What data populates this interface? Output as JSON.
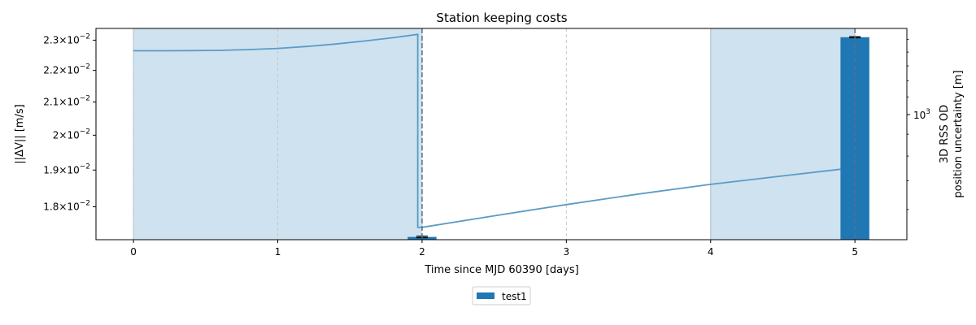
{
  "chart_data": {
    "type": "bar",
    "title": "Station keeping costs",
    "xlabel": "Time since MJD 60390 [days]",
    "ylabel": "||ΔV|| [m/s]",
    "y2label_line1": "3D RSS OD",
    "y2label_line2": "position uncertainty [m]",
    "xlim": [
      -0.26,
      5.36
    ],
    "xticks": [
      0,
      1,
      2,
      3,
      4,
      5
    ],
    "yscale": "log",
    "ylim": [
      0.01715,
      0.0234
    ],
    "yticks": [
      {
        "value": 0.018,
        "mantissa": "1.8"
      },
      {
        "value": 0.019,
        "mantissa": "1.9"
      },
      {
        "value": 0.02,
        "mantissa": "2"
      },
      {
        "value": 0.021,
        "mantissa": "2.1"
      },
      {
        "value": 0.022,
        "mantissa": "2.2"
      },
      {
        "value": 0.023,
        "mantissa": "2.3"
      }
    ],
    "ytick_base": "10",
    "ytick_exp": "−2",
    "y2scale": "log",
    "y2lim": [
      510,
      1590
    ],
    "y2ticks": [
      {
        "value": 1000,
        "base": "10",
        "exp": "3"
      }
    ],
    "grid_x": true,
    "shaded_intervals": [
      [
        0,
        2
      ],
      [
        4,
        5
      ]
    ],
    "shade_color": "#cfe2ef",
    "bar_color": "#1f77b4",
    "line_color": "#5b9bc8",
    "bar_width": 0.2,
    "series": [
      {
        "name": "test1",
        "x": [
          2,
          5
        ],
        "values": [
          0.01722,
          0.0231
        ],
        "err": [
          2e-05,
          2e-05
        ]
      }
    ],
    "uncertainty_line": [
      {
        "x": 0.0,
        "y": 1410
      },
      {
        "x": 0.2,
        "y": 1410
      },
      {
        "x": 0.4,
        "y": 1411
      },
      {
        "x": 0.6,
        "y": 1413
      },
      {
        "x": 0.8,
        "y": 1419
      },
      {
        "x": 1.0,
        "y": 1428
      },
      {
        "x": 1.2,
        "y": 1443
      },
      {
        "x": 1.4,
        "y": 1462
      },
      {
        "x": 1.6,
        "y": 1486
      },
      {
        "x": 1.8,
        "y": 1513
      },
      {
        "x": 1.97,
        "y": 1540
      },
      {
        "x": 1.97,
        "y": 545
      },
      {
        "x": 2.0,
        "y": 545
      },
      {
        "x": 2.5,
        "y": 580
      },
      {
        "x": 3.0,
        "y": 616
      },
      {
        "x": 3.5,
        "y": 652
      },
      {
        "x": 4.0,
        "y": 687
      },
      {
        "x": 4.5,
        "y": 719
      },
      {
        "x": 4.9,
        "y": 745
      }
    ],
    "vlines": [
      2,
      5
    ],
    "legend": {
      "position": "below-center",
      "entries": [
        "test1"
      ]
    }
  }
}
